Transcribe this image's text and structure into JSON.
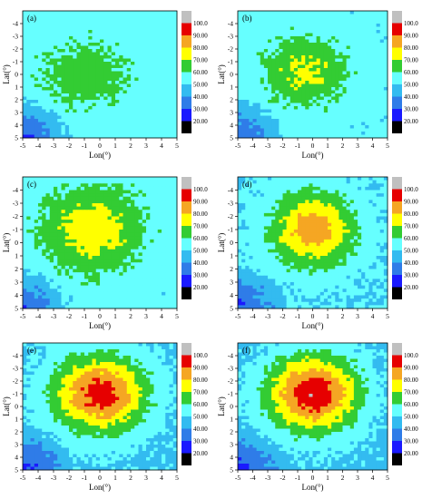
{
  "chart_data": [
    {
      "type": "heatmap",
      "panel_label": "(a)",
      "xlabel": "Lon(°)",
      "ylabel": "Lat(°)",
      "x_ticks": [
        "-5",
        "-4",
        "-3",
        "-2",
        "-1",
        "0",
        "1",
        "2",
        "3",
        "4",
        "5"
      ],
      "y_ticks": [
        "-4",
        "-3",
        "-2",
        "-1",
        "0",
        "1",
        "2",
        "3",
        "4",
        "5"
      ],
      "xlim": [
        -5,
        5
      ],
      "ylim": [
        -5,
        5
      ],
      "colorbar": {
        "levels": [
          "20.00",
          "30.00",
          "40.00",
          "50.00",
          "60.00",
          "70.00",
          "80.00",
          "90.00",
          "100.0"
        ]
      },
      "centers": [
        {
          "lon": -1,
          "lat": 0,
          "peak": 66
        }
      ],
      "bg": 54,
      "spread": 3.2,
      "corner_low": 26
    },
    {
      "type": "heatmap",
      "panel_label": "(b)",
      "xlabel": "Lon(°)",
      "ylabel": "Lat(°)",
      "x_ticks": [
        "-5",
        "-4",
        "-3",
        "-2",
        "-1",
        "0",
        "1",
        "2",
        "3",
        "4",
        "5"
      ],
      "y_ticks": [
        "-4",
        "-3",
        "-2",
        "-1",
        "0",
        "1",
        "2",
        "3",
        "4",
        "5"
      ],
      "xlim": [
        -5,
        5
      ],
      "ylim": [
        -5,
        5
      ],
      "colorbar": {
        "levels": [
          "20.00",
          "30.00",
          "40.00",
          "50.00",
          "60.00",
          "70.00",
          "80.00",
          "90.00",
          "100.0"
        ]
      },
      "centers": [
        {
          "lon": -0.5,
          "lat": -0.3,
          "peak": 73
        }
      ],
      "bg": 53,
      "spread": 3.0,
      "corner_low": 30
    },
    {
      "type": "heatmap",
      "panel_label": "(c)",
      "xlabel": "Lon(°)",
      "ylabel": "Lat(°)",
      "x_ticks": [
        "-5",
        "-4",
        "-3",
        "-2",
        "-1",
        "0",
        "1",
        "2",
        "3",
        "4",
        "5"
      ],
      "y_ticks": [
        "-4",
        "-3",
        "-2",
        "-1",
        "0",
        "1",
        "2",
        "3",
        "4",
        "5"
      ],
      "xlim": [
        -5,
        5
      ],
      "ylim": [
        -5,
        5
      ],
      "colorbar": {
        "levels": [
          "20.00",
          "30.00",
          "40.00",
          "50.00",
          "60.00",
          "70.00",
          "80.00",
          "90.00",
          "100.0"
        ]
      },
      "centers": [
        {
          "lon": -0.5,
          "lat": -1,
          "peak": 77
        }
      ],
      "bg": 53,
      "spread": 3.6,
      "corner_low": 28
    },
    {
      "type": "heatmap",
      "panel_label": "(d)",
      "xlabel": "Lon(°)",
      "ylabel": "Lat(°)",
      "x_ticks": [
        "-5",
        "-4",
        "-3",
        "-2",
        "-1",
        "0",
        "1",
        "2",
        "3",
        "4",
        "5"
      ],
      "y_ticks": [
        "-4",
        "-3",
        "-2",
        "-1",
        "0",
        "1",
        "2",
        "3",
        "4",
        "5"
      ],
      "xlim": [
        -5,
        5
      ],
      "ylim": [
        -5,
        5
      ],
      "colorbar": {
        "levels": [
          "20.00",
          "30.00",
          "40.00",
          "50.00",
          "60.00",
          "70.00",
          "80.00",
          "90.00",
          "100.0"
        ]
      },
      "centers": [
        {
          "lon": 0,
          "lat": -1,
          "peak": 86
        }
      ],
      "bg": 50,
      "spread": 3.1,
      "corner_low": 28
    },
    {
      "type": "heatmap",
      "panel_label": "(e)",
      "xlabel": "Lon(°)",
      "ylabel": "Lat(°)",
      "x_ticks": [
        "-5",
        "-4",
        "-3",
        "-2",
        "-1",
        "0",
        "1",
        "2",
        "3",
        "4",
        "5"
      ],
      "y_ticks": [
        "-4",
        "-3",
        "-2",
        "-1",
        "0",
        "1",
        "2",
        "3",
        "4",
        "5"
      ],
      "xlim": [
        -5,
        5
      ],
      "ylim": [
        -5,
        5
      ],
      "colorbar": {
        "levels": [
          "20.00",
          "30.00",
          "40.00",
          "50.00",
          "60.00",
          "70.00",
          "80.00",
          "90.00",
          "100.0"
        ]
      },
      "centers": [
        {
          "lon": 0,
          "lat": -1,
          "peak": 96
        }
      ],
      "bg": 48,
      "spread": 3.3,
      "corner_low": 26
    },
    {
      "type": "heatmap",
      "panel_label": "(f)",
      "xlabel": "Lon(°)",
      "ylabel": "Lat(°)",
      "x_ticks": [
        "-5",
        "-4",
        "-3",
        "-2",
        "-1",
        "0",
        "1",
        "2",
        "3",
        "4",
        "5"
      ],
      "y_ticks": [
        "-4",
        "-3",
        "-2",
        "-1",
        "0",
        "1",
        "2",
        "3",
        "4",
        "5"
      ],
      "xlim": [
        -5,
        5
      ],
      "ylim": [
        -5,
        5
      ],
      "colorbar": {
        "levels": [
          "20.00",
          "30.00",
          "40.00",
          "50.00",
          "60.00",
          "70.00",
          "80.00",
          "90.00",
          "100.0"
        ]
      },
      "centers": [
        {
          "lon": 0,
          "lat": -1,
          "peak": 98
        }
      ],
      "bg": 47,
      "spread": 3.4,
      "corner_low": 25
    }
  ],
  "palette": {
    "below20": "#000000",
    "20-30": "#1a1aff",
    "30-40": "#2f7ce8",
    "40-50": "#33bbf0",
    "50-60": "#66ffff",
    "60-70": "#33cc33",
    "70-80": "#ffff00",
    "80-90": "#f5a623",
    "90-100": "#e60000",
    "above100": "#c0c0c0"
  }
}
